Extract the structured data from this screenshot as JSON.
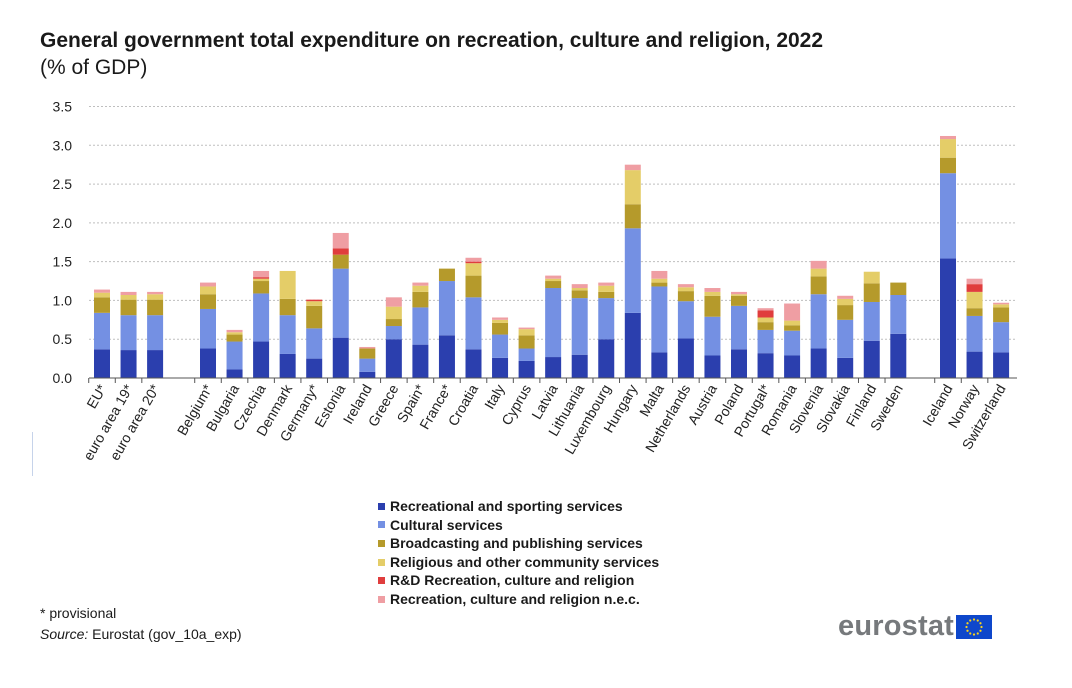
{
  "title": {
    "main": "General government total expenditure on recreation, culture and religion, 2022",
    "suffix": "(% of GDP)"
  },
  "footnote": "* provisional",
  "source": {
    "label": "Source:",
    "text": "Eurostat (gov_10a_exp)"
  },
  "logo": {
    "text": "eurostat",
    "flag_icon": "eu-flag-icon"
  },
  "colors": {
    "recreational": "#2b3fae",
    "cultural": "#7490e3",
    "broadcasting": "#b59a2b",
    "religious": "#e4cd68",
    "rd": "#e03d3d",
    "nec": "#ef9ea3",
    "gridline": "#bfbfbf",
    "axis": "#555555"
  },
  "chart_data": {
    "type": "bar",
    "stacked": true,
    "ylim": [
      0,
      3.5
    ],
    "yticks": [
      "0.0",
      "0.5",
      "1.0",
      "1.5",
      "2.0",
      "2.5",
      "3.0",
      "3.5"
    ],
    "ytick_values": [
      0,
      0.5,
      1.0,
      1.5,
      2.0,
      2.5,
      3.0,
      3.5
    ],
    "grid": true,
    "legend_position": "bottom-center",
    "categories": [
      "EU*",
      "euro area 19*",
      "euro area 20*",
      "Belgium*",
      "Bulgaria",
      "Czechia",
      "Denmark",
      "Germany*",
      "Estonia",
      "Ireland",
      "Greece",
      "Spain*",
      "France*",
      "Croatia",
      "Italy",
      "Cyprus",
      "Latvia",
      "Lithuania",
      "Luxembourg",
      "Hungary",
      "Malta",
      "Netherlands",
      "Austria",
      "Poland",
      "Portugal*",
      "Romania",
      "Slovenia",
      "Slovakia",
      "Finland",
      "Sweden",
      "Iceland",
      "Norway",
      "Switzerland"
    ],
    "groups": [
      3,
      27,
      3
    ],
    "series": [
      {
        "name": "Recreational and sporting services",
        "color_key": "recreational",
        "values": [
          0.37,
          0.36,
          0.36,
          0.38,
          0.11,
          0.47,
          0.31,
          0.25,
          0.52,
          0.08,
          0.5,
          0.43,
          0.55,
          0.37,
          0.26,
          0.22,
          0.27,
          0.3,
          0.5,
          0.84,
          0.33,
          0.51,
          0.29,
          0.37,
          0.32,
          0.29,
          0.38,
          0.26,
          0.48,
          0.57,
          1.54,
          0.34,
          0.33
        ]
      },
      {
        "name": "Cultural services",
        "color_key": "cultural",
        "values": [
          0.47,
          0.45,
          0.45,
          0.51,
          0.36,
          0.62,
          0.5,
          0.39,
          0.89,
          0.17,
          0.17,
          0.48,
          0.7,
          0.67,
          0.3,
          0.16,
          0.89,
          0.73,
          0.53,
          1.09,
          0.85,
          0.48,
          0.5,
          0.56,
          0.3,
          0.32,
          0.7,
          0.49,
          0.5,
          0.5,
          1.1,
          0.46,
          0.39
        ]
      },
      {
        "name": "Broadcasting and publishing services",
        "color_key": "broadcasting",
        "values": [
          0.2,
          0.2,
          0.2,
          0.19,
          0.09,
          0.16,
          0.21,
          0.29,
          0.18,
          0.13,
          0.09,
          0.2,
          0.16,
          0.28,
          0.15,
          0.17,
          0.09,
          0.1,
          0.08,
          0.31,
          0.05,
          0.13,
          0.27,
          0.13,
          0.1,
          0.07,
          0.23,
          0.19,
          0.24,
          0.16,
          0.2,
          0.1,
          0.19
        ]
      },
      {
        "name": "Religious and other community services",
        "color_key": "religious",
        "values": [
          0.06,
          0.06,
          0.07,
          0.1,
          0.03,
          0.03,
          0.36,
          0.06,
          0.0,
          0.0,
          0.16,
          0.08,
          0.0,
          0.16,
          0.04,
          0.08,
          0.03,
          0.03,
          0.08,
          0.44,
          0.05,
          0.05,
          0.05,
          0.02,
          0.06,
          0.06,
          0.1,
          0.08,
          0.15,
          0.0,
          0.24,
          0.21,
          0.04
        ]
      },
      {
        "name": "R&D Recreation, culture and religion",
        "color_key": "rd",
        "values": [
          0.0,
          0.0,
          0.0,
          0.0,
          0.0,
          0.02,
          0.0,
          0.02,
          0.08,
          0.0,
          0.0,
          0.0,
          0.0,
          0.02,
          0.0,
          0.0,
          0.0,
          0.0,
          0.0,
          0.0,
          0.0,
          0.0,
          0.0,
          0.0,
          0.09,
          0.0,
          0.0,
          0.0,
          0.0,
          0.0,
          0.0,
          0.1,
          0.0
        ]
      },
      {
        "name": "Recreation, culture and religion n.e.c.",
        "color_key": "nec",
        "values": [
          0.04,
          0.04,
          0.03,
          0.05,
          0.03,
          0.08,
          0.0,
          0.0,
          0.2,
          0.02,
          0.12,
          0.04,
          0.0,
          0.05,
          0.03,
          0.02,
          0.04,
          0.05,
          0.04,
          0.07,
          0.1,
          0.04,
          0.05,
          0.03,
          0.03,
          0.22,
          0.1,
          0.04,
          0.0,
          0.0,
          0.04,
          0.07,
          0.02
        ]
      }
    ]
  }
}
